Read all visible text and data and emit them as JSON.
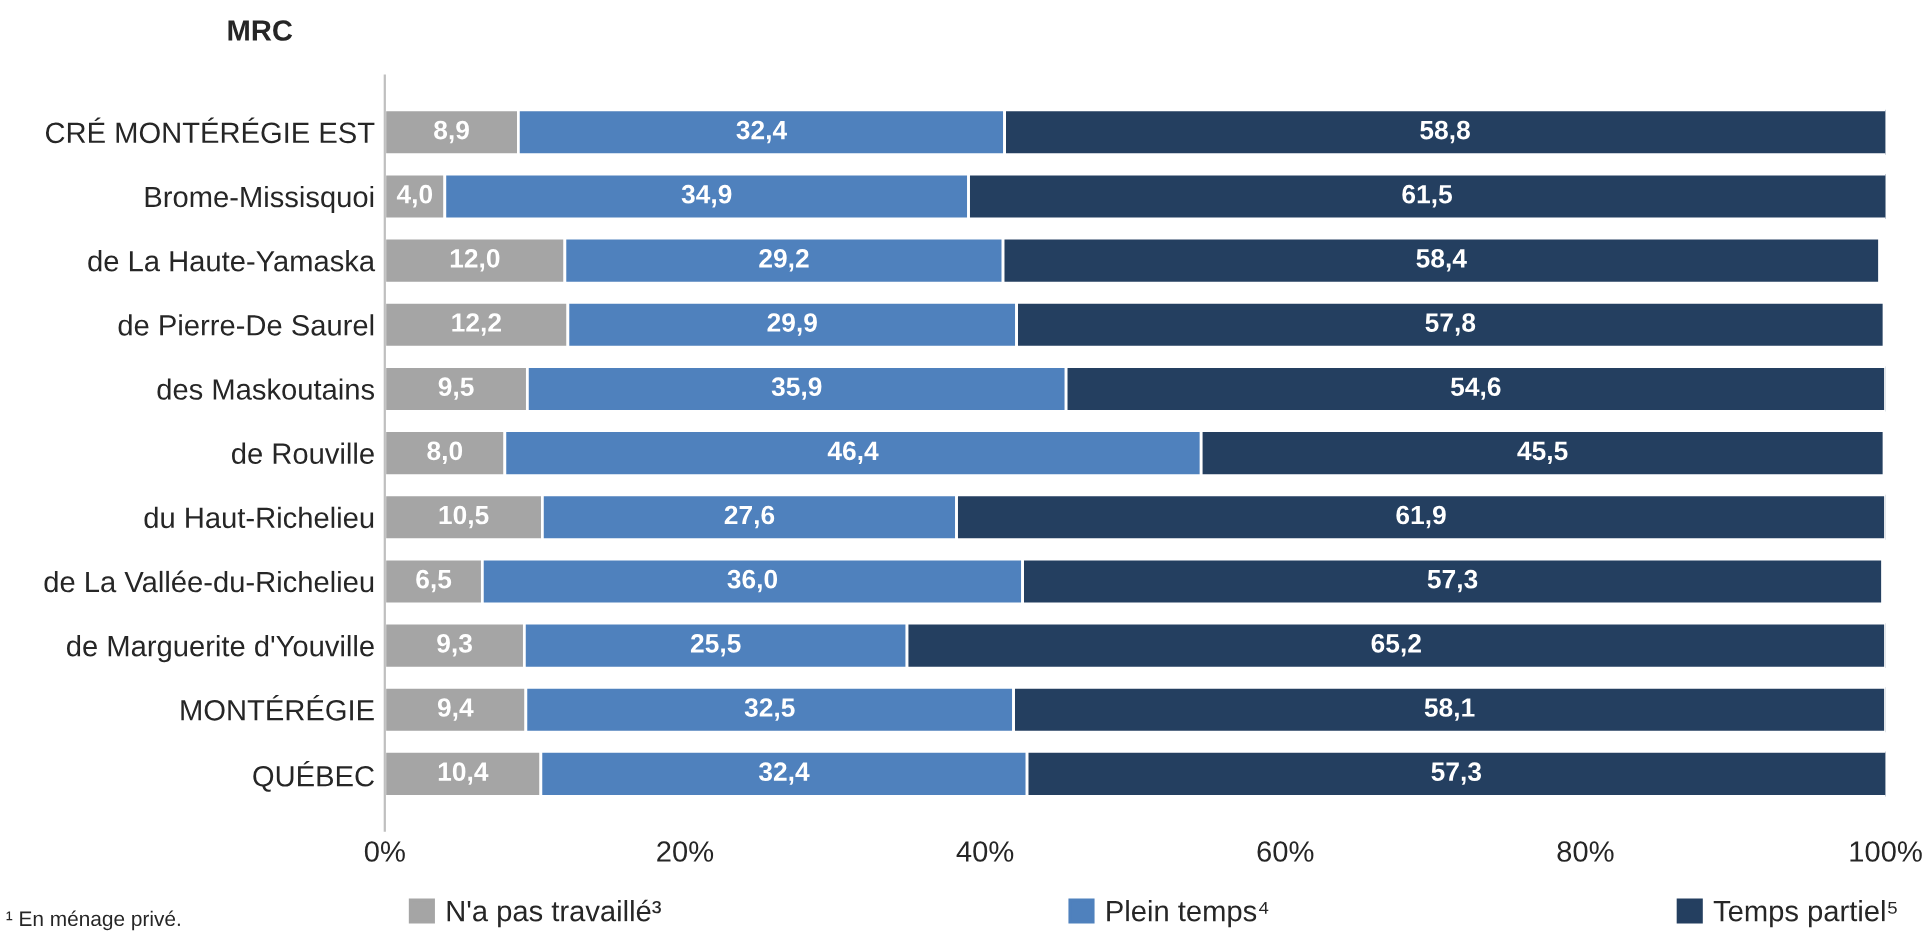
{
  "chart_data": {
    "type": "bar",
    "orientation": "horizontal",
    "stacked": true,
    "ylabel": "MRC",
    "categories": [
      "CRÉ MONTÉRÉGIE EST",
      "Brome-Missisquoi",
      "de La Haute-Yamaska",
      "de Pierre-De Saurel",
      "des Maskoutains",
      "de Rouville",
      "du Haut-Richelieu",
      "de La Vallée-du-Richelieu",
      "de Marguerite d'Youville",
      "MONTÉRÉGIE",
      "QUÉBEC"
    ],
    "series": [
      {
        "name": "N'a pas travaillé³",
        "color": "#a5a5a5",
        "values": [
          8.9,
          4.0,
          12.0,
          12.2,
          9.5,
          8.0,
          10.5,
          6.5,
          9.3,
          9.4,
          10.4
        ],
        "value_labels": [
          "8,9",
          "4,0",
          "12,0",
          "12,2",
          "9,5",
          "8,0",
          "10,5",
          "6,5",
          "9,3",
          "9,4",
          "10,4"
        ]
      },
      {
        "name": "Plein temps⁴",
        "color": "#4f81bd",
        "values": [
          32.4,
          34.9,
          29.2,
          29.9,
          35.9,
          46.4,
          27.6,
          36.0,
          25.5,
          32.5,
          32.4
        ],
        "value_labels": [
          "32,4",
          "34,9",
          "29,2",
          "29,9",
          "35,9",
          "46,4",
          "27,6",
          "36,0",
          "25,5",
          "32,5",
          "32,4"
        ]
      },
      {
        "name": "Temps partiel⁵",
        "color": "#243f60",
        "values": [
          58.8,
          61.5,
          58.4,
          57.8,
          54.6,
          45.5,
          61.9,
          57.3,
          65.2,
          58.1,
          57.3
        ],
        "value_labels": [
          "58,8",
          "61,5",
          "58,4",
          "57,8",
          "54,6",
          "45,5",
          "61,9",
          "57,3",
          "65,2",
          "58,1",
          "57,3"
        ]
      }
    ],
    "xlim": [
      0,
      100
    ],
    "xticks": [
      {
        "value": 0,
        "label": "0%"
      },
      {
        "value": 20,
        "label": "20%"
      },
      {
        "value": 40,
        "label": "40%"
      },
      {
        "value": 60,
        "label": "60%"
      },
      {
        "value": 80,
        "label": "80%"
      },
      {
        "value": 100,
        "label": "100%"
      }
    ],
    "grid": false,
    "legend": "bottom",
    "annotations": [
      "¹ En ménage privé."
    ]
  }
}
